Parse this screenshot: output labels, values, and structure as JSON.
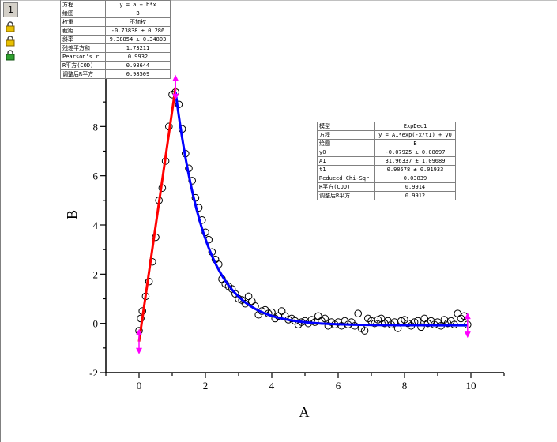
{
  "layer": {
    "label": "1"
  },
  "lock_icons": [
    "lock-icon-1",
    "lock-icon-2",
    "lock-icon-3"
  ],
  "colors": {
    "linear_fit": "#ff0000",
    "exp_fit": "#0000ff",
    "marker": "#ff00ff",
    "points": "#000000"
  },
  "linear_table": {
    "rows": [
      {
        "k": "方程",
        "v": "y = a + b*x"
      },
      {
        "k": "绘图",
        "v": "B"
      },
      {
        "k": "权重",
        "v": "不加权"
      },
      {
        "k": "截距",
        "v": "-0.73838 ± 0.286"
      },
      {
        "k": "斜率",
        "v": "9.38854 ± 0.34803"
      },
      {
        "k": "残差平方和",
        "v": "1.73211"
      },
      {
        "k": "Pearson's r",
        "v": "0.9932"
      },
      {
        "k": "R平方(COD)",
        "v": "0.98644"
      },
      {
        "k": "调整后R平方",
        "v": "0.98509"
      }
    ]
  },
  "exp_table": {
    "rows": [
      {
        "k": "模型",
        "v": "ExpDec1"
      },
      {
        "k": "方程",
        "v": "y = A1*exp(-x/t1) + y0"
      },
      {
        "k": "绘图",
        "v": "B"
      },
      {
        "k": "y0",
        "v": "-0.07925 ± 0.08697"
      },
      {
        "k": "A1",
        "v": "31.96337 ± 1.09689"
      },
      {
        "k": "t1",
        "v": "0.90578 ± 0.01933"
      },
      {
        "k": "Reduced Chi-Sqr",
        "v": "0.03839"
      },
      {
        "k": "R平方(COD)",
        "v": "0.9914"
      },
      {
        "k": "调整后R平方",
        "v": "0.9912"
      }
    ]
  },
  "chart_data": {
    "type": "scatter",
    "xlabel": "A",
    "ylabel": "B",
    "xlim": [
      -1,
      11
    ],
    "ylim": [
      -2,
      10
    ],
    "xticks": [
      0,
      2,
      4,
      6,
      8,
      10
    ],
    "yticks": [
      -2,
      0,
      2,
      4,
      6,
      8
    ],
    "points": [
      [
        0.0,
        -0.3
      ],
      [
        0.05,
        0.2
      ],
      [
        0.1,
        0.5
      ],
      [
        0.2,
        1.1
      ],
      [
        0.3,
        1.7
      ],
      [
        0.4,
        2.5
      ],
      [
        0.5,
        3.5
      ],
      [
        0.6,
        5.0
      ],
      [
        0.7,
        5.5
      ],
      [
        0.8,
        6.6
      ],
      [
        0.9,
        8.0
      ],
      [
        1.0,
        9.3
      ],
      [
        1.1,
        9.4
      ],
      [
        1.2,
        8.9
      ],
      [
        1.3,
        7.9
      ],
      [
        1.4,
        6.9
      ],
      [
        1.5,
        6.3
      ],
      [
        1.6,
        5.8
      ],
      [
        1.7,
        5.1
      ],
      [
        1.8,
        4.7
      ],
      [
        1.9,
        4.2
      ],
      [
        2.0,
        3.7
      ],
      [
        2.1,
        3.4
      ],
      [
        2.2,
        2.9
      ],
      [
        2.3,
        2.6
      ],
      [
        2.4,
        2.4
      ],
      [
        2.5,
        1.8
      ],
      [
        2.6,
        1.6
      ],
      [
        2.7,
        1.5
      ],
      [
        2.8,
        1.4
      ],
      [
        2.9,
        1.2
      ],
      [
        3.0,
        1.0
      ],
      [
        3.1,
        0.95
      ],
      [
        3.2,
        0.8
      ],
      [
        3.3,
        1.1
      ],
      [
        3.4,
        0.9
      ],
      [
        3.5,
        0.7
      ],
      [
        3.6,
        0.35
      ],
      [
        3.7,
        0.5
      ],
      [
        3.8,
        0.55
      ],
      [
        3.9,
        0.4
      ],
      [
        4.0,
        0.45
      ],
      [
        4.1,
        0.2
      ],
      [
        4.2,
        0.3
      ],
      [
        4.3,
        0.5
      ],
      [
        4.4,
        0.3
      ],
      [
        4.5,
        0.15
      ],
      [
        4.6,
        0.2
      ],
      [
        4.7,
        0.1
      ],
      [
        4.8,
        -0.05
      ],
      [
        4.9,
        0.05
      ],
      [
        5.0,
        0.1
      ],
      [
        5.1,
        0.0
      ],
      [
        5.2,
        0.15
      ],
      [
        5.3,
        0.05
      ],
      [
        5.4,
        0.3
      ],
      [
        5.5,
        0.1
      ],
      [
        5.6,
        0.2
      ],
      [
        5.7,
        -0.1
      ],
      [
        5.8,
        0.05
      ],
      [
        5.9,
        -0.05
      ],
      [
        6.0,
        0.05
      ],
      [
        6.1,
        -0.1
      ],
      [
        6.2,
        0.1
      ],
      [
        6.3,
        -0.05
      ],
      [
        6.4,
        0.05
      ],
      [
        6.5,
        -0.1
      ],
      [
        6.6,
        0.4
      ],
      [
        6.7,
        -0.2
      ],
      [
        6.8,
        -0.3
      ],
      [
        6.9,
        0.2
      ],
      [
        7.0,
        0.1
      ],
      [
        7.1,
        0.0
      ],
      [
        7.2,
        0.15
      ],
      [
        7.3,
        0.2
      ],
      [
        7.4,
        0.0
      ],
      [
        7.5,
        0.1
      ],
      [
        7.6,
        -0.05
      ],
      [
        7.7,
        0.05
      ],
      [
        7.8,
        -0.2
      ],
      [
        7.9,
        0.1
      ],
      [
        8.0,
        0.15
      ],
      [
        8.1,
        0.0
      ],
      [
        8.2,
        -0.1
      ],
      [
        8.3,
        0.05
      ],
      [
        8.4,
        0.1
      ],
      [
        8.5,
        -0.15
      ],
      [
        8.6,
        0.2
      ],
      [
        8.7,
        0.0
      ],
      [
        8.8,
        0.1
      ],
      [
        8.9,
        -0.05
      ],
      [
        9.0,
        0.05
      ],
      [
        9.1,
        -0.1
      ],
      [
        9.2,
        0.15
      ],
      [
        9.3,
        0.0
      ],
      [
        9.4,
        0.1
      ],
      [
        9.5,
        -0.05
      ],
      [
        9.6,
        0.4
      ],
      [
        9.7,
        0.2
      ],
      [
        9.8,
        0.3
      ],
      [
        9.9,
        -0.05
      ]
    ],
    "linear_fit": {
      "x_from": 0.0,
      "x_to": 1.1,
      "intercept": -0.73838,
      "slope": 9.38854
    },
    "exp_fit": {
      "x_from": 1.1,
      "x_to": 9.9,
      "y0": -0.07925,
      "A1": 31.96337,
      "t1": 0.90578
    },
    "markers": [
      {
        "x": 0.0,
        "y": -0.74
      },
      {
        "x": 1.1,
        "y": 9.59
      },
      {
        "x": 9.9,
        "y": -0.08
      }
    ]
  }
}
